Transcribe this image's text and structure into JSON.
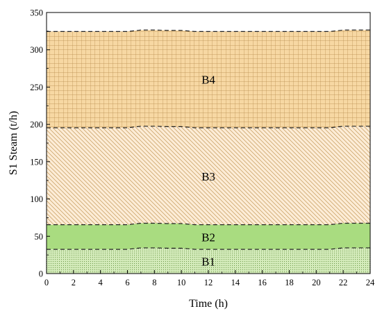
{
  "chart_data": {
    "type": "area",
    "stacked": true,
    "title": "",
    "xlabel": "Time (h)",
    "ylabel": "S1 Steam (t/h)",
    "xlim": [
      0,
      24
    ],
    "ylim": [
      0,
      350
    ],
    "xticks": [
      0,
      2,
      4,
      6,
      8,
      10,
      12,
      14,
      16,
      18,
      20,
      22,
      24
    ],
    "yticks": [
      0,
      50,
      100,
      150,
      200,
      250,
      300,
      350
    ],
    "grid": false,
    "x": [
      0,
      1,
      2,
      3,
      4,
      5,
      6,
      7,
      8,
      9,
      10,
      11,
      12,
      13,
      14,
      15,
      16,
      17,
      18,
      19,
      20,
      21,
      22,
      23,
      24
    ],
    "series": [
      {
        "name": "B1",
        "pattern": "dots",
        "fill": "#c8e6a8",
        "values": [
          32.5,
          32.5,
          32.5,
          32.5,
          32.5,
          32.5,
          32.5,
          34.5,
          34.5,
          34,
          34,
          32.5,
          32.5,
          32.5,
          32.5,
          32.5,
          32.5,
          32.5,
          32.5,
          32.5,
          32.5,
          32.5,
          34.5,
          34.5,
          34.5
        ]
      },
      {
        "name": "B2",
        "pattern": "solid",
        "fill": "#a9dc80",
        "values": [
          33,
          33,
          33,
          33,
          33,
          33,
          33,
          33,
          33,
          33,
          33,
          33,
          33,
          33,
          33,
          33,
          33,
          33,
          33,
          33,
          33,
          33,
          33,
          33,
          33
        ]
      },
      {
        "name": "B3",
        "pattern": "diagonal",
        "fill": "#fbead0",
        "values": [
          130,
          130,
          130,
          130,
          130,
          130,
          130,
          130,
          130,
          130,
          130,
          130,
          130,
          130,
          130,
          130,
          130,
          130,
          130,
          130,
          130,
          130,
          130,
          130,
          130
        ]
      },
      {
        "name": "B4",
        "pattern": "grid",
        "fill": "#f6d7a1",
        "values": [
          129,
          129,
          129,
          129,
          129,
          129,
          129,
          129,
          129,
          129,
          129,
          129,
          129,
          129,
          129,
          129,
          129,
          129,
          129,
          129,
          129,
          129,
          129,
          129,
          129
        ]
      }
    ],
    "boundary_style": "dashed",
    "labels": [
      "B1",
      "B2",
      "B3",
      "B4"
    ]
  }
}
